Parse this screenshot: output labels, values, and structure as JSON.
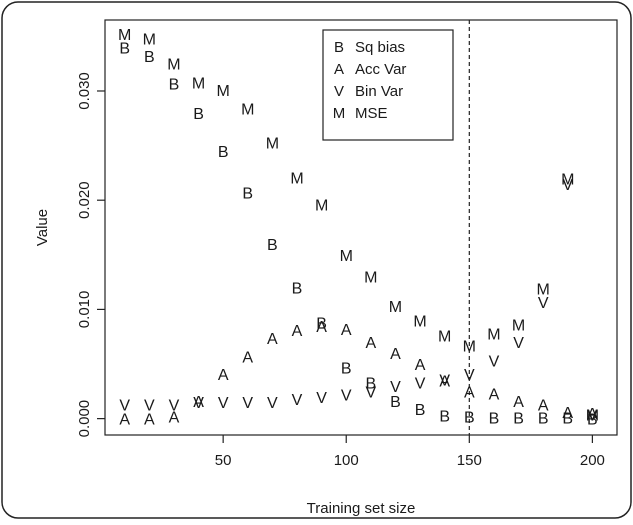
{
  "chart_data": {
    "type": "scatter",
    "xlabel": "Training set size",
    "ylabel": "Value",
    "xlim": [
      2,
      210
    ],
    "ylim": [
      -0.0015,
      0.0365
    ],
    "xticks": [
      50,
      100,
      150,
      200
    ],
    "yticks": [
      0.0,
      0.01,
      0.02,
      0.03
    ],
    "ytick_labels": [
      "0.000",
      "0.010",
      "0.020",
      "0.030"
    ],
    "grid": false,
    "legend_position": "top-center",
    "vline": {
      "x": 150,
      "style": "dashed"
    },
    "series": [
      {
        "name": "Sq bias",
        "marker": "B",
        "x": [
          10,
          20,
          30,
          40,
          50,
          60,
          70,
          80,
          90,
          100,
          110,
          120,
          130,
          140,
          150,
          160,
          170,
          180,
          190,
          200
        ],
        "y": [
          0.034,
          0.0332,
          0.0307,
          0.028,
          0.0245,
          0.0207,
          0.016,
          0.012,
          0.0088,
          0.0047,
          0.0033,
          0.0016,
          0.0009,
          0.0003,
          0.0002,
          0.0001,
          0.0001,
          0.0001,
          0.0001,
          0.0
        ]
      },
      {
        "name": "Acc Var",
        "marker": "A",
        "x": [
          10,
          20,
          30,
          40,
          50,
          60,
          70,
          80,
          90,
          100,
          110,
          120,
          130,
          140,
          150,
          160,
          170,
          180,
          190,
          200
        ],
        "y": [
          0.0,
          0.0,
          0.0002,
          0.0016,
          0.0041,
          0.0057,
          0.0074,
          0.0081,
          0.0085,
          0.0082,
          0.007,
          0.006,
          0.005,
          0.0035,
          0.0025,
          0.0023,
          0.0016,
          0.0013,
          0.0006,
          0.0005
        ]
      },
      {
        "name": "Bin Var",
        "marker": "V",
        "x": [
          10,
          20,
          30,
          40,
          50,
          60,
          70,
          80,
          90,
          100,
          110,
          120,
          130,
          140,
          150,
          160,
          170,
          180,
          190,
          200
        ],
        "y": [
          0.0013,
          0.0013,
          0.0013,
          0.0015,
          0.0015,
          0.0015,
          0.0015,
          0.0018,
          0.002,
          0.0022,
          0.0025,
          0.003,
          0.0033,
          0.0036,
          0.0041,
          0.0053,
          0.007,
          0.0107,
          0.0215,
          0.0004
        ]
      },
      {
        "name": "MSE",
        "marker": "M",
        "x": [
          10,
          20,
          30,
          40,
          50,
          60,
          70,
          80,
          90,
          100,
          110,
          120,
          130,
          140,
          150,
          160,
          170,
          180,
          190,
          200
        ],
        "y": [
          0.0352,
          0.0348,
          0.0325,
          0.0308,
          0.0301,
          0.0284,
          0.0253,
          0.0221,
          0.0196,
          0.015,
          0.013,
          0.0103,
          0.009,
          0.0076,
          0.0067,
          0.0078,
          0.0086,
          0.0119,
          0.022,
          0.0004
        ]
      }
    ]
  }
}
